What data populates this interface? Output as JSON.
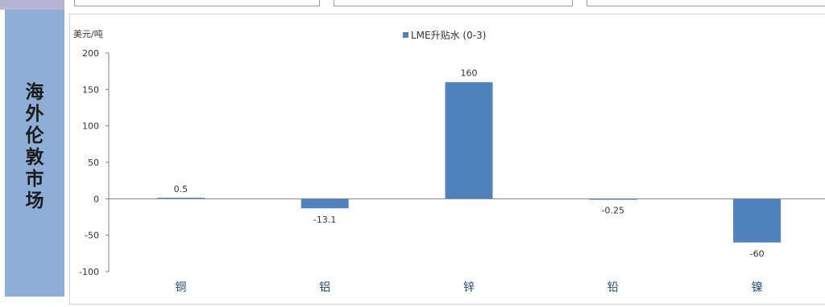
{
  "sidebar": {
    "chars": [
      "海",
      "外",
      "伦",
      "敦",
      "市",
      "场"
    ]
  },
  "colors": {
    "bar": "#4f81bd",
    "sidebar": "#8eaed7",
    "top_left": "#b7b4d4"
  },
  "chart_data": {
    "type": "bar",
    "unit": "美元/吨",
    "legend": "LME升贴水 (0-3)",
    "categories": [
      "铜",
      "铝",
      "锌",
      "铅",
      "镍"
    ],
    "series": [
      {
        "name": "LME升贴水 (0-3)",
        "values": [
          0.5,
          -13.1,
          160,
          -0.25,
          -60
        ]
      }
    ],
    "data_labels": [
      "0.5",
      "-13.1",
      "160",
      "-0.25",
      "-60"
    ],
    "y_ticks": [
      "200",
      "150",
      "100",
      "50",
      "0",
      "-50",
      "-100"
    ],
    "ylim": [
      -100,
      200
    ],
    "legend_position": "top"
  }
}
